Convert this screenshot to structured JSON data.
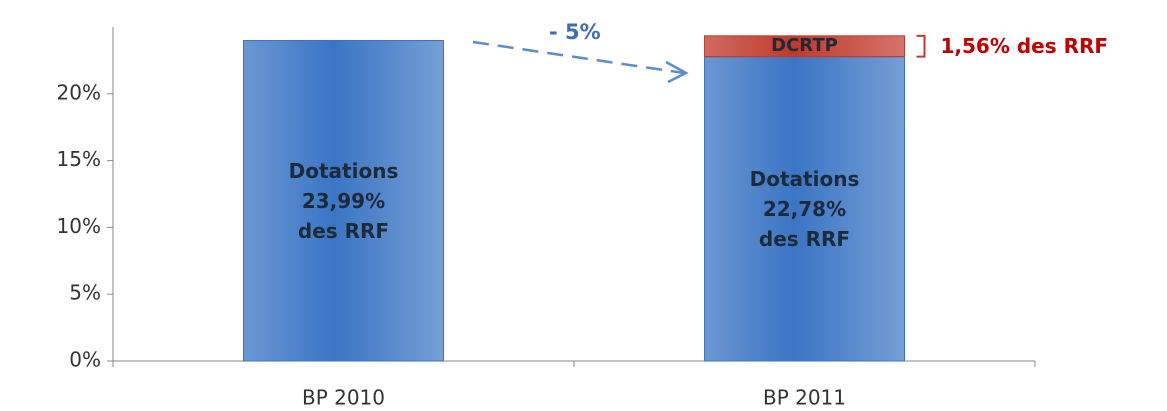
{
  "chart_data": {
    "type": "stacked-bar",
    "categories": [
      "BP 2010",
      "BP 2011"
    ],
    "series": [
      {
        "name": "Dotations",
        "color": "#3a75c4",
        "values": [
          23.99,
          22.78
        ],
        "value_labels": [
          "23,99%\ndes RRF",
          "22,78%\ndes RRF"
        ]
      },
      {
        "name": "DCRTP",
        "color": "#c0392b",
        "values": [
          null,
          1.56
        ],
        "value_labels": [
          null,
          "1,56% des RRF"
        ]
      }
    ],
    "annotation": "- 5%",
    "ylim": [
      0,
      25
    ],
    "yticks": [
      {
        "value": 0,
        "label": "0%"
      },
      {
        "value": 5,
        "label": "5%"
      },
      {
        "value": 10,
        "label": "10%"
      },
      {
        "value": 15,
        "label": "15%"
      },
      {
        "value": 20,
        "label": "20%"
      }
    ]
  }
}
